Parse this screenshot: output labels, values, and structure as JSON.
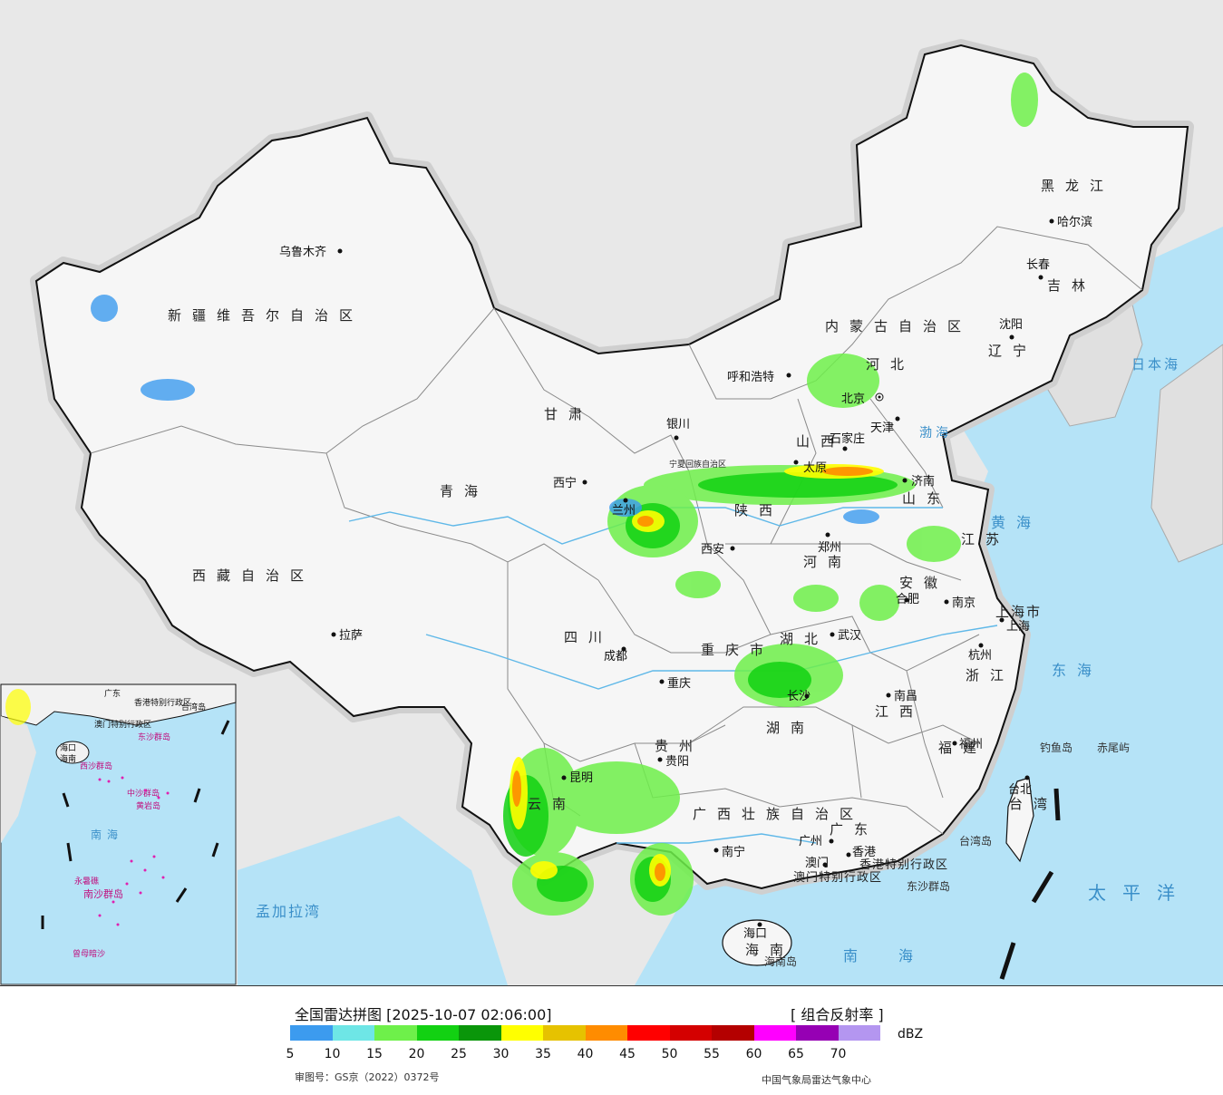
{
  "map": {
    "provinces": [
      "新疆维吾尔自治区",
      "西藏自治区",
      "青海",
      "甘肃",
      "内蒙古自治区",
      "黑龙江",
      "吉林",
      "辽宁",
      "河北",
      "山西",
      "山东",
      "陕西",
      "河南",
      "江苏",
      "安徽",
      "湖北",
      "四川",
      "重庆市",
      "湖南",
      "江西",
      "浙江",
      "福建",
      "贵州",
      "云南",
      "广西壮族自治区",
      "广东",
      "海南",
      "台湾",
      "上海市",
      "香港特别行政区",
      "澳门特别行政区",
      "宁夏回族自治区"
    ],
    "cities": [
      "乌鲁木齐",
      "拉萨",
      "西宁",
      "兰州",
      "银川",
      "呼和浩特",
      "北京",
      "天津",
      "石家庄",
      "太原",
      "济南",
      "西安",
      "郑州",
      "合肥",
      "南京",
      "上海",
      "杭州",
      "武汉",
      "长沙",
      "南昌",
      "福州",
      "台北",
      "成都",
      "重庆",
      "贵阳",
      "昆明",
      "南宁",
      "广州",
      "香港",
      "澳门",
      "海口",
      "沈阳",
      "长春",
      "哈尔滨"
    ],
    "seas": [
      "日本海",
      "渤海",
      "黄海",
      "东海",
      "太平洋",
      "南海",
      "孟加拉湾"
    ],
    "islands": [
      "钓鱼岛",
      "赤尾屿",
      "台湾岛",
      "东沙群岛",
      "海南岛"
    ],
    "inset": {
      "labels": [
        "海口",
        "海南",
        "西沙群岛",
        "中沙群岛",
        "黄岩岛",
        "南海",
        "永暑礁",
        "南沙群岛",
        "曾母暗沙",
        "广东",
        "香港特别行政区",
        "澳门特别行政区",
        "东沙群岛",
        "台湾岛"
      ]
    }
  },
  "legend": {
    "title": "全国雷达拼图 [2025-10-07 02:06:00]",
    "product": "[ 组合反射率 ]",
    "unit": "dBZ",
    "ticks": [
      "5",
      "10",
      "15",
      "20",
      "25",
      "30",
      "35",
      "40",
      "45",
      "50",
      "55",
      "60",
      "65",
      "70"
    ],
    "colors": [
      "#3c9bef",
      "#6ee6e6",
      "#6ef04a",
      "#12d112",
      "#0a960a",
      "#ffff00",
      "#e6c200",
      "#ff8c00",
      "#ff0000",
      "#d40000",
      "#b40000",
      "#ff00ff",
      "#9600b4",
      "#b496f0"
    ],
    "review_number": "审图号：GS京（2022）0372号",
    "credit": "中国气象局雷达气象中心"
  }
}
